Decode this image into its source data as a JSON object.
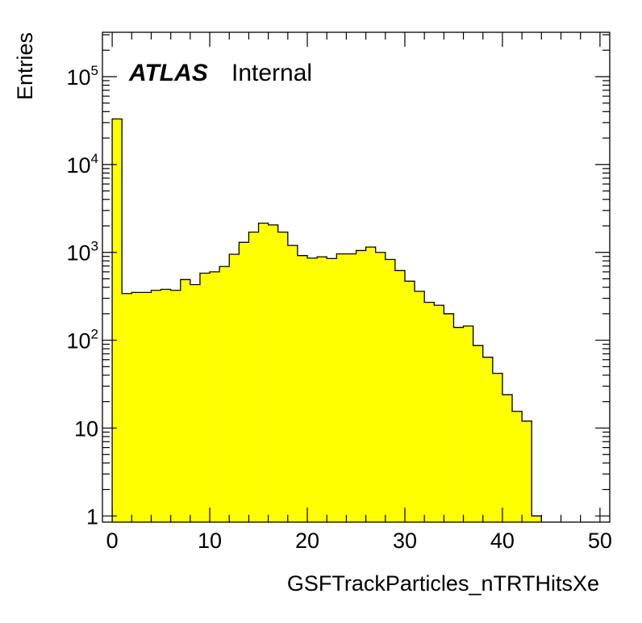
{
  "chart_data": {
    "type": "histogram",
    "xlabel": "GSFTrackParticles_nTRTHitsXe",
    "ylabel": "Entries",
    "experiment_label": "ATLAS",
    "status_label": "Internal",
    "yscale": "log",
    "xlim": [
      -1,
      51
    ],
    "ylim": [
      0.85,
      320000
    ],
    "x_ticks": [
      {
        "value": 0,
        "label": "0"
      },
      {
        "value": 10,
        "label": "10"
      },
      {
        "value": 20,
        "label": "20"
      },
      {
        "value": 30,
        "label": "30"
      },
      {
        "value": 40,
        "label": "40"
      },
      {
        "value": 50,
        "label": "50"
      }
    ],
    "y_ticks": [
      {
        "value": 1,
        "base": "1",
        "exp": ""
      },
      {
        "value": 10,
        "base": "10",
        "exp": ""
      },
      {
        "value": 100,
        "base": "10",
        "exp": "2"
      },
      {
        "value": 1000,
        "base": "10",
        "exp": "3"
      },
      {
        "value": 10000,
        "base": "10",
        "exp": "4"
      },
      {
        "value": 100000,
        "base": "10",
        "exp": "5"
      }
    ],
    "fill_color": "#ffff00",
    "line_color": "#000000",
    "bin_edges_start": 0,
    "bin_width": 1,
    "values": [
      33000,
      340,
      350,
      350,
      370,
      380,
      370,
      490,
      430,
      580,
      600,
      690,
      950,
      1300,
      1700,
      2150,
      2050,
      1700,
      1200,
      920,
      860,
      890,
      850,
      960,
      960,
      1050,
      1150,
      1000,
      830,
      620,
      470,
      360,
      270,
      250,
      200,
      140,
      145,
      87,
      64,
      42,
      24,
      15.5,
      12,
      1
    ]
  }
}
